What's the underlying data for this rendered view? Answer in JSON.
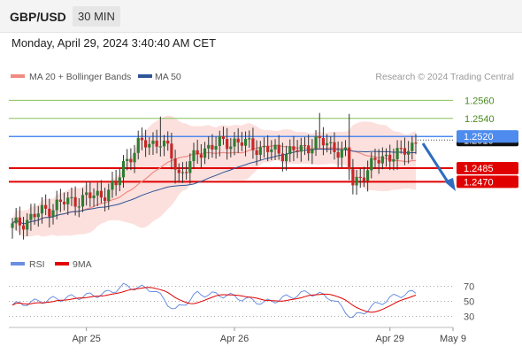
{
  "header": {
    "symbol": "GBP/USD",
    "timeframe": "30 MIN"
  },
  "timestamp": "Monday, April 29, 2024 3:40:40 AM CET",
  "legend": {
    "ma20_label": "MA 20 + Bollinger Bands",
    "ma50_label": "MA 50",
    "copyright": "Research © 2024 Trading Central"
  },
  "rsi_legend": {
    "rsi_label": "RSI",
    "ma_label": "9MA"
  },
  "colors": {
    "ma20": "#f08a82",
    "ma50": "#2f5596",
    "bands": "#fbd3cf",
    "bull": "#2e7d32",
    "bear": "#c62828",
    "resistance": "#86c05a",
    "support": "#e00000",
    "pivot": "#4d8bef",
    "rsi": "#6a8fe0",
    "rsi_ma": "#e00000",
    "arrow": "#2f6cc0"
  },
  "chart_data": [
    {
      "type": "candlestick",
      "title": "GBP/USD 30 MIN",
      "y_range": [
        1.2395,
        1.2575
      ],
      "y_scale": "linear",
      "x_ticks": [
        "Apr 25",
        "Apr 26",
        "Apr 29",
        "May 9"
      ],
      "candles_count": 110,
      "anchors": [
        {
          "i": 0,
          "price": 1.242
        },
        {
          "i": 12,
          "price": 1.2445
        },
        {
          "i": 24,
          "price": 1.2456
        },
        {
          "i": 28,
          "price": 1.2465
        },
        {
          "i": 30,
          "price": 1.249
        },
        {
          "i": 34,
          "price": 1.251
        },
        {
          "i": 40,
          "price": 1.2515
        },
        {
          "i": 43,
          "price": 1.2498
        },
        {
          "i": 45,
          "price": 1.2478
        },
        {
          "i": 47,
          "price": 1.2486
        },
        {
          "i": 52,
          "price": 1.2508
        },
        {
          "i": 60,
          "price": 1.2515
        },
        {
          "i": 68,
          "price": 1.2506
        },
        {
          "i": 72,
          "price": 1.2502
        },
        {
          "i": 78,
          "price": 1.2505
        },
        {
          "i": 82,
          "price": 1.2515
        },
        {
          "i": 87,
          "price": 1.2508
        },
        {
          "i": 90,
          "price": 1.25
        },
        {
          "i": 92,
          "price": 1.2468
        },
        {
          "i": 95,
          "price": 1.248
        },
        {
          "i": 100,
          "price": 1.2498
        },
        {
          "i": 105,
          "price": 1.25
        },
        {
          "i": 109,
          "price": 1.2515
        }
      ],
      "levels": [
        {
          "value": 1.256,
          "label": "1.2560",
          "kind": "resistance"
        },
        {
          "value": 1.254,
          "label": "1.2540",
          "kind": "resistance"
        },
        {
          "value": 1.252,
          "label": "1.2520",
          "kind": "pivot"
        },
        {
          "value": 1.2485,
          "label": "1.2485",
          "kind": "support"
        },
        {
          "value": 1.247,
          "label": "1.2470",
          "kind": "support"
        }
      ],
      "last_price": 1.2516,
      "last_price_label": "1.2516",
      "series": [
        {
          "name": "MA 20 + Bollinger Bands"
        },
        {
          "name": "MA 50"
        }
      ],
      "legend_position": "top-left",
      "grid": false
    },
    {
      "type": "line",
      "title": "",
      "y_range": [
        20,
        80
      ],
      "y_ticks": [
        30,
        50,
        70
      ],
      "anchors_rsi": [
        {
          "i": 0,
          "v": 45
        },
        {
          "i": 10,
          "v": 52
        },
        {
          "i": 25,
          "v": 60
        },
        {
          "i": 30,
          "v": 70
        },
        {
          "i": 38,
          "v": 66
        },
        {
          "i": 44,
          "v": 38
        },
        {
          "i": 50,
          "v": 60
        },
        {
          "i": 58,
          "v": 58
        },
        {
          "i": 68,
          "v": 48
        },
        {
          "i": 80,
          "v": 62
        },
        {
          "i": 86,
          "v": 55
        },
        {
          "i": 92,
          "v": 28
        },
        {
          "i": 98,
          "v": 45
        },
        {
          "i": 104,
          "v": 58
        },
        {
          "i": 109,
          "v": 62
        }
      ],
      "series": [
        {
          "name": "RSI"
        },
        {
          "name": "9MA"
        }
      ]
    }
  ]
}
